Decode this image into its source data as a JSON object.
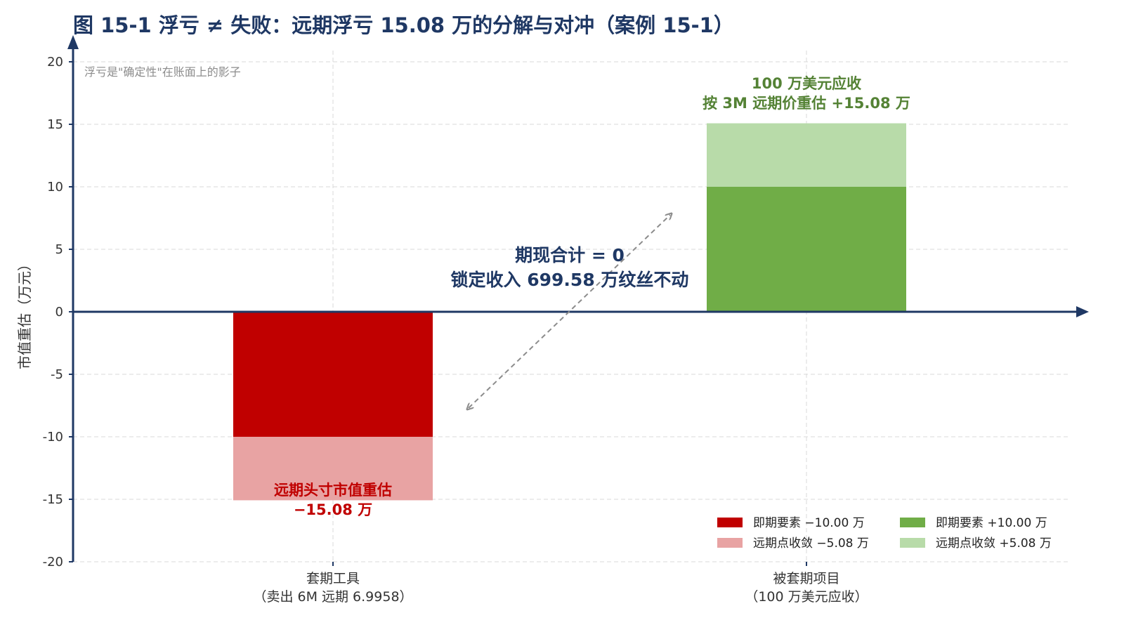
{
  "chart_data": {
    "type": "bar",
    "stacked": true,
    "title": "图 15-1 浮亏 ≠ 失败：远期浮亏 15.08 万的分解与对冲（案例 15-1）",
    "ylabel": "市值重估（万元）",
    "ylim": [
      -20,
      20
    ],
    "yticks": [
      -20,
      -15,
      -10,
      -5,
      0,
      5,
      10,
      15,
      20
    ],
    "grid": true,
    "legend_position": "bottom-right",
    "categories": [
      [
        "套期工具",
        "（卖出 6M 远期 6.9958）"
      ],
      [
        "被套期项目",
        "（100 万美元应收）"
      ]
    ],
    "series": [
      {
        "name": "即期要素 −10.00 万",
        "color": "#c00000",
        "category": 0,
        "values": [
          -10.0,
          0
        ]
      },
      {
        "name": "远期点收敛 −5.08 万",
        "color": "#e8a3a3",
        "category": 0,
        "values": [
          -5.08,
          0
        ]
      },
      {
        "name": "即期要素 +10.00 万",
        "color": "#70ad47",
        "category": 1,
        "values": [
          0,
          10.0
        ]
      },
      {
        "name": "远期点收敛 +5.08 万",
        "color": "#b8dba9",
        "category": 1,
        "values": [
          0,
          5.08
        ]
      }
    ],
    "annotations": {
      "corner_note": "浮亏是\"确定性\"在账面上的影子",
      "left_bar": [
        "远期头寸市值重估",
        "−15.08 万"
      ],
      "right_bar": [
        "100 万美元应收",
        "按 3M 远期价重估 +15.08 万"
      ],
      "center": [
        "期现合计 = 0",
        "锁定收入 699.58 万纹丝不动"
      ]
    },
    "colors": {
      "axis": "#1f3864",
      "red_dark": "#c00000",
      "red_light": "#e8a3a3",
      "green_dark": "#70ad47",
      "green_light": "#b8dba9",
      "arrow": "#8c8c8c"
    }
  }
}
